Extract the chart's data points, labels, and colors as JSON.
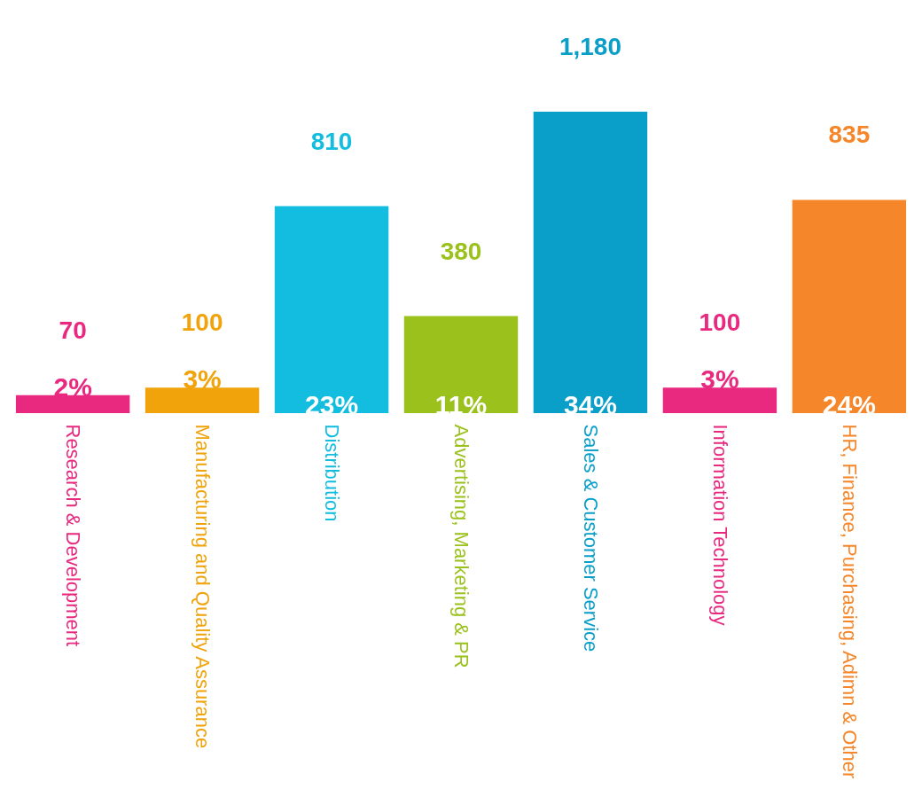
{
  "chart_data": {
    "type": "bar",
    "categories": [
      "Research & Development",
      "Manufacturing and Quality Assurance",
      "Distribution",
      "Advertising, Marketing & PR",
      "Sales & Customer Service",
      "Information Technology",
      "HR, Finance, Purchasing, Adimn & Other"
    ],
    "values": [
      70,
      100,
      810,
      380,
      1180,
      100,
      835
    ],
    "value_labels": [
      "70",
      "100",
      "810",
      "380",
      "1,180",
      "100",
      "835"
    ],
    "colors": [
      "#e8297f",
      "#f0a30a",
      "#12bde0",
      "#9bc21c",
      "#0a9fc9",
      "#e8297f",
      "#f5872a"
    ],
    "annotations": [
      "2%",
      "3%",
      "23%",
      "11%",
      "34%",
      "3%",
      "24%"
    ]
  }
}
